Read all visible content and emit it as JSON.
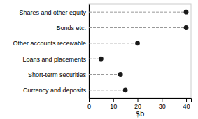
{
  "chart_data": {
    "type": "lollipop",
    "orientation": "horizontal",
    "categories": [
      "Currency and deposits",
      "Short-term securities",
      "Loans and placements",
      "Other accounts receivable",
      "Bonds etc.",
      "Shares and other equity"
    ],
    "values": [
      15,
      13,
      5,
      20,
      40,
      40
    ],
    "color": "#1a1a1a",
    "marker": "circle",
    "line_style": "dashed",
    "xlabel": "$b",
    "xlim": [
      0,
      42
    ],
    "xticks": [
      0,
      10,
      20,
      30,
      40
    ],
    "grid": false
  }
}
